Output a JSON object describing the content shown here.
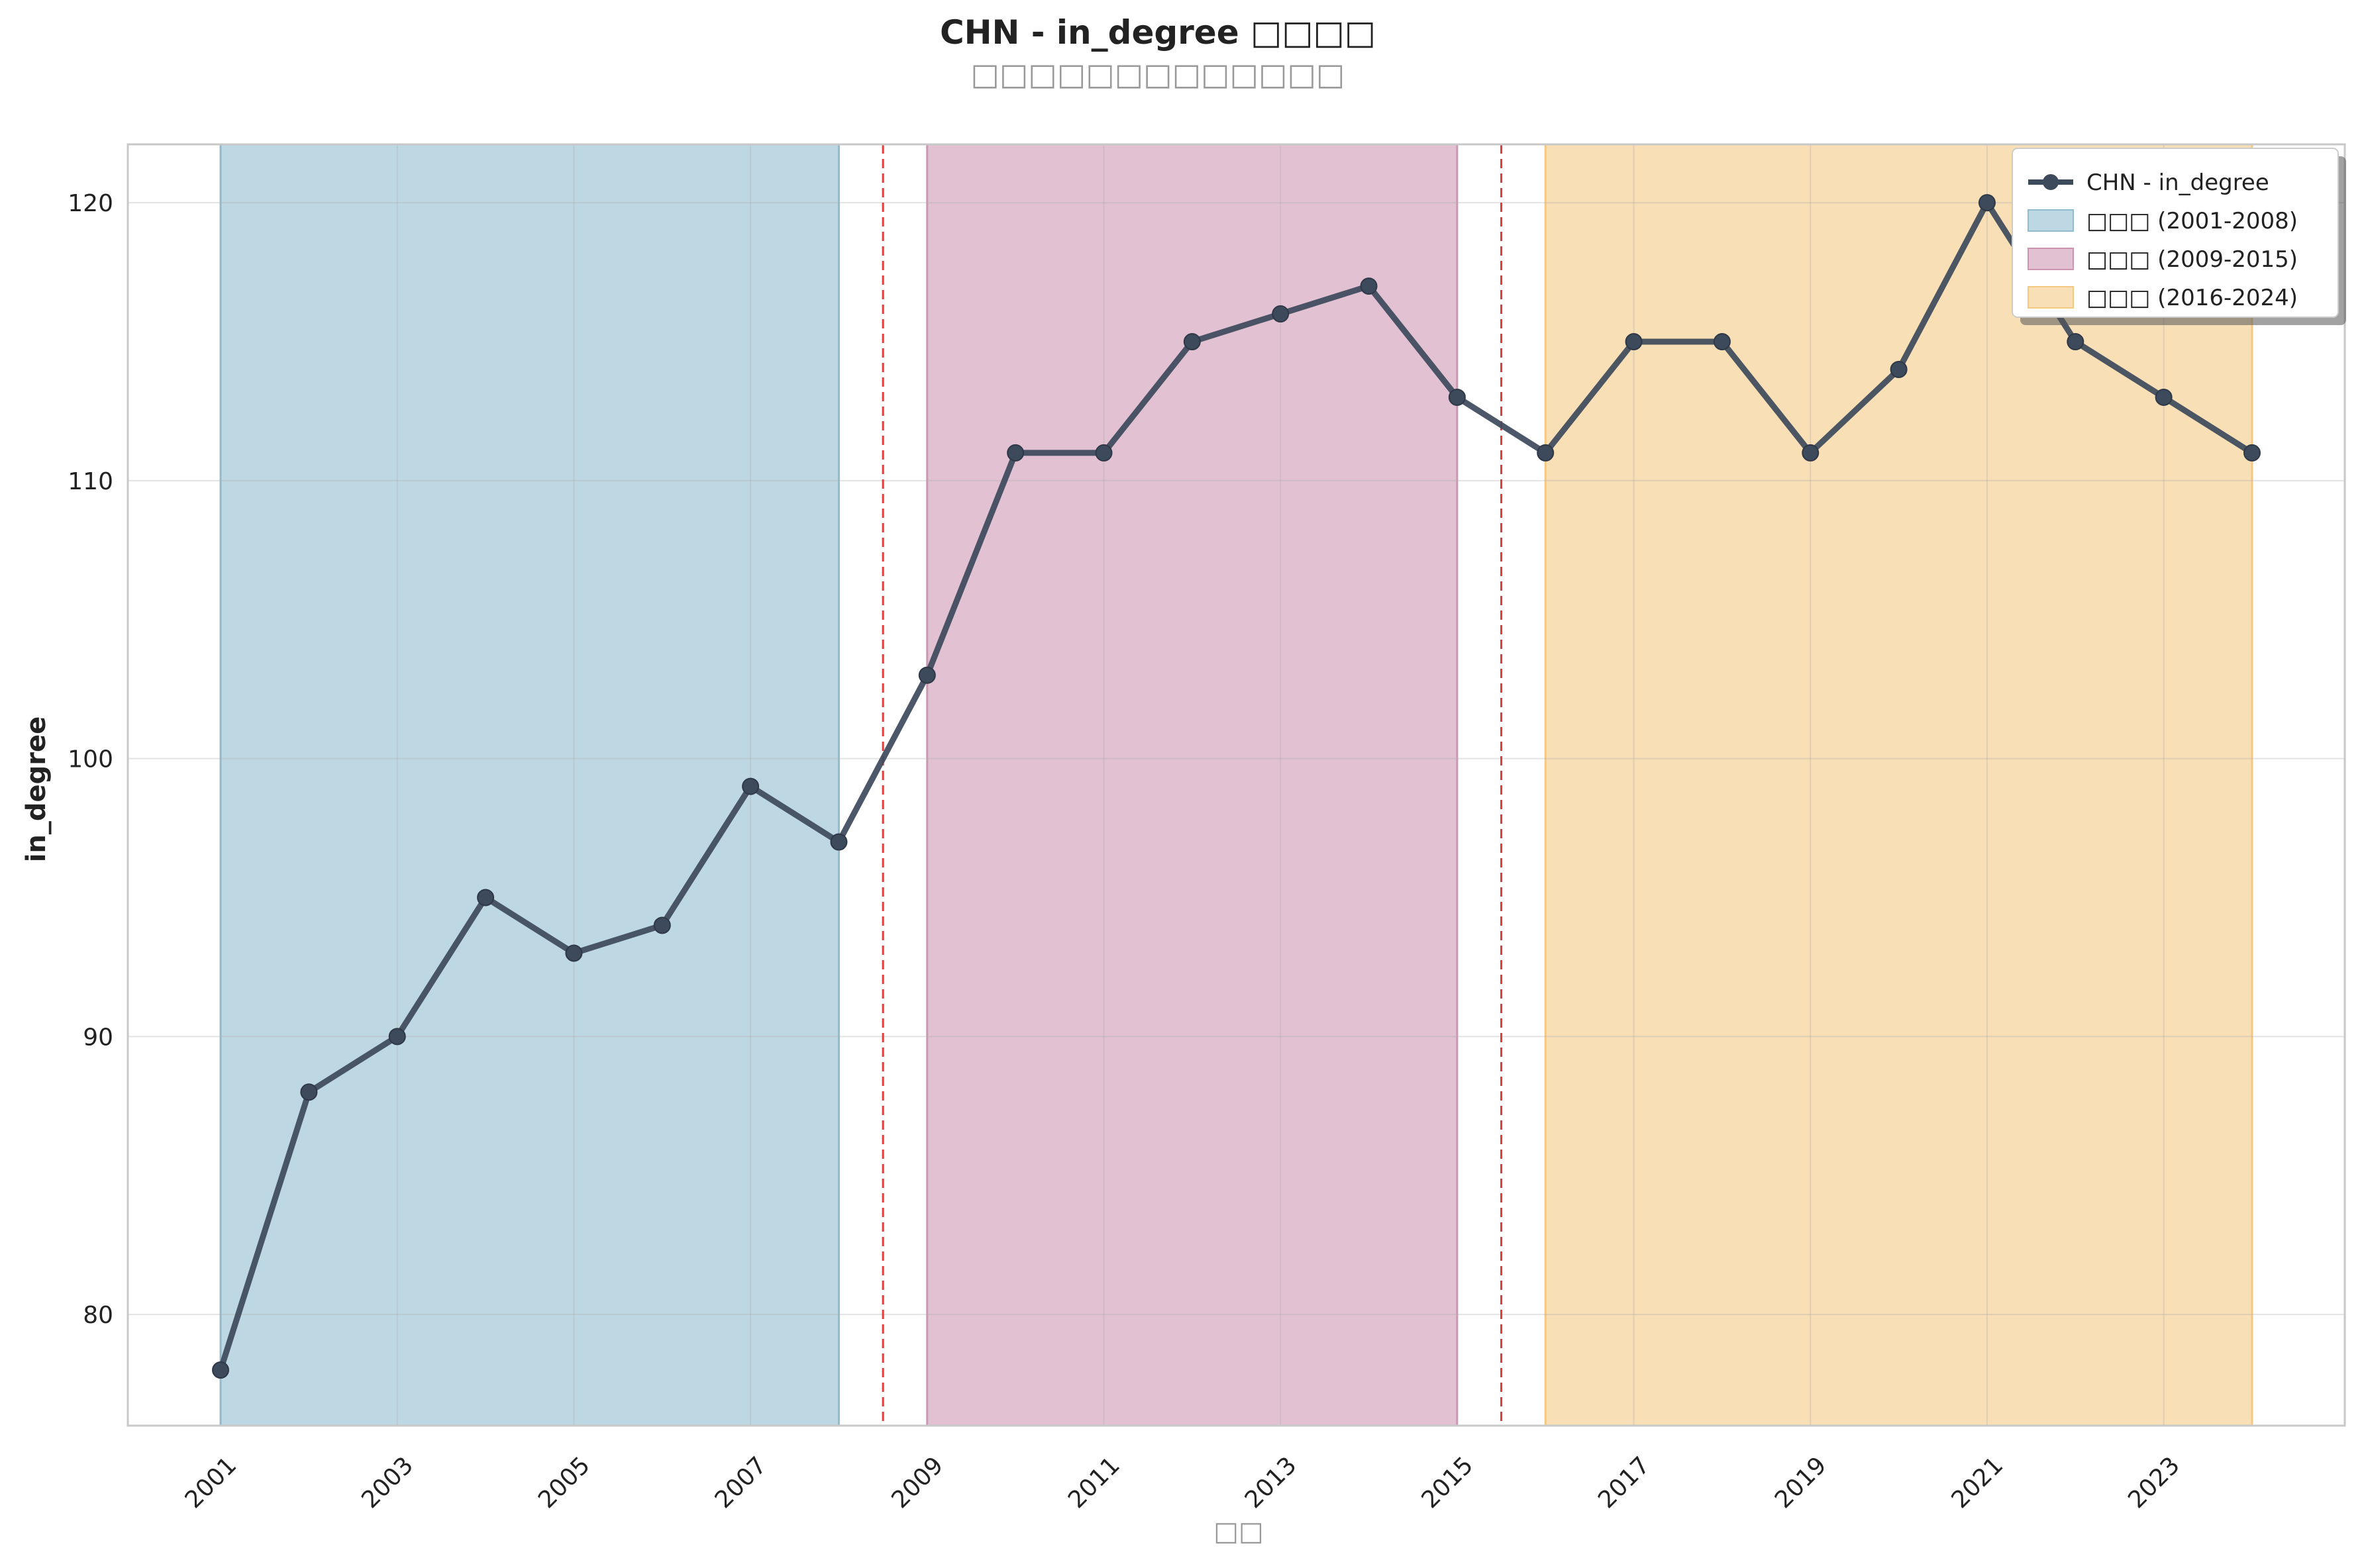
{
  "chart_data": {
    "type": "line",
    "title": "CHN - in_degree □□□□",
    "subtitle": "□□□□□□□□□□□□□",
    "xlabel": "□□",
    "ylabel": "in_degree",
    "x": [
      2001,
      2002,
      2003,
      2004,
      2005,
      2006,
      2007,
      2008,
      2009,
      2010,
      2011,
      2012,
      2013,
      2014,
      2015,
      2016,
      2017,
      2018,
      2019,
      2020,
      2021,
      2022,
      2023,
      2024
    ],
    "series": [
      {
        "name": "CHN - in_degree",
        "color": "#3d4a5c",
        "values": [
          78,
          88,
          90,
          95,
          93,
          94,
          99,
          97,
          103,
          111,
          111,
          115,
          116,
          117,
          113,
          111,
          115,
          115,
          111,
          114,
          120,
          115,
          113,
          111
        ]
      }
    ],
    "xlim": [
      1999.95,
      2025.05
    ],
    "ylim": [
      76,
      122.1
    ],
    "x_ticks": [
      2001,
      2003,
      2005,
      2007,
      2009,
      2011,
      2013,
      2015,
      2017,
      2019,
      2021,
      2023
    ],
    "x_tick_labels": [
      "2001",
      "2003",
      "2005",
      "2007",
      "2009",
      "2011",
      "2013",
      "2015",
      "2017",
      "2019",
      "2021",
      "2023"
    ],
    "y_ticks": [
      80,
      90,
      100,
      110,
      120
    ],
    "y_tick_labels": [
      "80",
      "90",
      "100",
      "110",
      "120"
    ],
    "phases": [
      {
        "label": "□□□ (2001-2008)",
        "start": 2001,
        "end": 2008,
        "color": "#8fbccf"
      },
      {
        "label": "□□□ (2009-2015)",
        "start": 2009,
        "end": 2015,
        "color": "#cc94b1"
      },
      {
        "label": "□□□ (2016-2024)",
        "start": 2016,
        "end": 2024,
        "color": "#f5c882"
      }
    ],
    "breakpoints": [
      2008.5,
      2015.5
    ],
    "breakpoint_color": "#e03c3c",
    "grid": true,
    "legend_position": "top-right"
  }
}
